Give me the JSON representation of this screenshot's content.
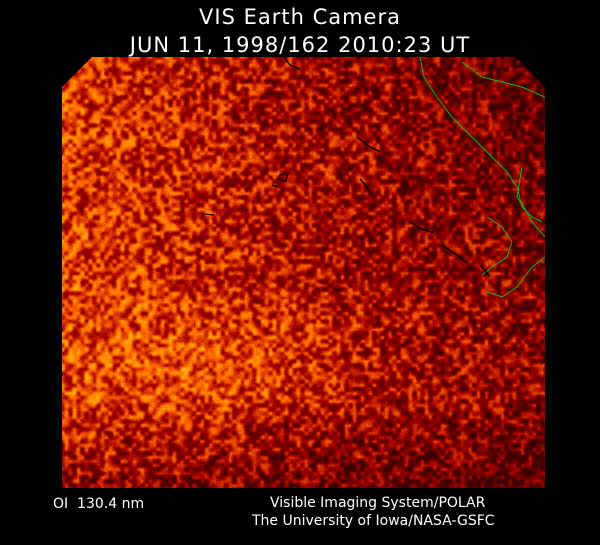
{
  "header": {
    "title": "VIS Earth Camera",
    "timestamp": "JUN 11, 1998/162 2010:23 UT"
  },
  "image": {
    "description_colormap": "dark red to orange/yellow",
    "coastline_color": "#1fae2a",
    "outline_color": "#000000"
  },
  "footer": {
    "band": "OI  130.4 nm",
    "instrument": "Visible Imaging System/POLAR",
    "institution": "The University of Iowa/NASA-GSFC"
  }
}
